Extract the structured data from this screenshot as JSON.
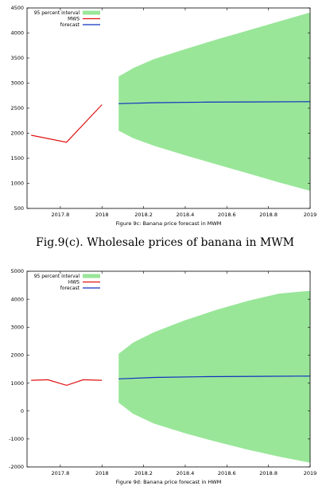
{
  "chart_data": [
    {
      "type": "line",
      "title": "Figure 9c: Banana price forecast in MWM",
      "legend": [
        "95 percent interval",
        "MWS",
        "forecast"
      ],
      "legend_placement": "top-left",
      "colors": {
        "interval": "#99e699",
        "history": "#e01010",
        "forecast": "#1030c0"
      },
      "xlim": [
        2017.64,
        2019.0
      ],
      "ylim": [
        500,
        4500
      ],
      "xticks": [
        2017.8,
        2018,
        2018.2,
        2018.4,
        2018.6,
        2018.8,
        2019
      ],
      "xtick_labels": [
        "2017.8",
        "2018",
        "2018.2",
        "2018.4",
        "2018.6",
        "2018.8",
        "2019"
      ],
      "yticks": [
        500,
        1000,
        1500,
        2000,
        2500,
        3000,
        3500,
        4000,
        4500
      ],
      "ytick_labels": [
        "500",
        "1000",
        "1500",
        "2000",
        "2500",
        "3000",
        "3500",
        "4000",
        "4500"
      ],
      "series": [
        {
          "name": "MWS",
          "x": [
            2017.66,
            2017.83,
            2018.0
          ],
          "y": [
            1960,
            1820,
            2570
          ]
        },
        {
          "name": "forecast",
          "x": [
            2018.08,
            2018.25,
            2018.5,
            2018.75,
            2019.0
          ],
          "y": [
            2590,
            2610,
            2620,
            2625,
            2630
          ]
        }
      ],
      "interval": {
        "x": [
          2018.08,
          2018.15,
          2018.25,
          2018.4,
          2018.55,
          2018.7,
          2018.85,
          2019.0
        ],
        "lower": [
          2050,
          1900,
          1750,
          1560,
          1380,
          1200,
          1020,
          850
        ],
        "upper": [
          3130,
          3300,
          3480,
          3680,
          3870,
          4050,
          4230,
          4410
        ]
      }
    },
    {
      "type": "line",
      "title": "Figure 9d: Banana price forecast in HWM",
      "legend": [
        "95 percent interval",
        "HWS",
        "forecast"
      ],
      "legend_placement": "top-left",
      "colors": {
        "interval": "#99e699",
        "history": "#e01010",
        "forecast": "#1030c0"
      },
      "xlim": [
        2017.64,
        2019.0
      ],
      "ylim": [
        -2000,
        5000
      ],
      "xticks": [
        2017.8,
        2018,
        2018.2,
        2018.4,
        2018.6,
        2018.8,
        2019
      ],
      "xtick_labels": [
        "2017.8",
        "2018",
        "2018.2",
        "2018.4",
        "2018.6",
        "2018.8",
        "2019"
      ],
      "yticks": [
        -2000,
        -1000,
        0,
        1000,
        2000,
        3000,
        4000,
        5000
      ],
      "ytick_labels": [
        "-2000",
        "-1000",
        "0",
        "1000",
        "2000",
        "3000",
        "4000",
        "5000"
      ],
      "series": [
        {
          "name": "HWS",
          "x": [
            2017.66,
            2017.74,
            2017.83,
            2017.91,
            2018.0
          ],
          "y": [
            1100,
            1120,
            920,
            1120,
            1100
          ]
        },
        {
          "name": "forecast",
          "x": [
            2018.08,
            2018.25,
            2018.5,
            2018.75,
            2019.0
          ],
          "y": [
            1150,
            1200,
            1230,
            1240,
            1250
          ]
        }
      ],
      "interval": {
        "x": [
          2018.08,
          2018.15,
          2018.25,
          2018.4,
          2018.55,
          2018.7,
          2018.85,
          2019.0
        ],
        "lower": [
          300,
          -100,
          -450,
          -800,
          -1100,
          -1380,
          -1630,
          -1850
        ],
        "upper": [
          2050,
          2450,
          2820,
          3250,
          3620,
          3940,
          4200,
          4300
        ]
      }
    }
  ],
  "captions": {
    "figure_c": "Fig.9(c). Wholesale prices of banana in MWM"
  }
}
